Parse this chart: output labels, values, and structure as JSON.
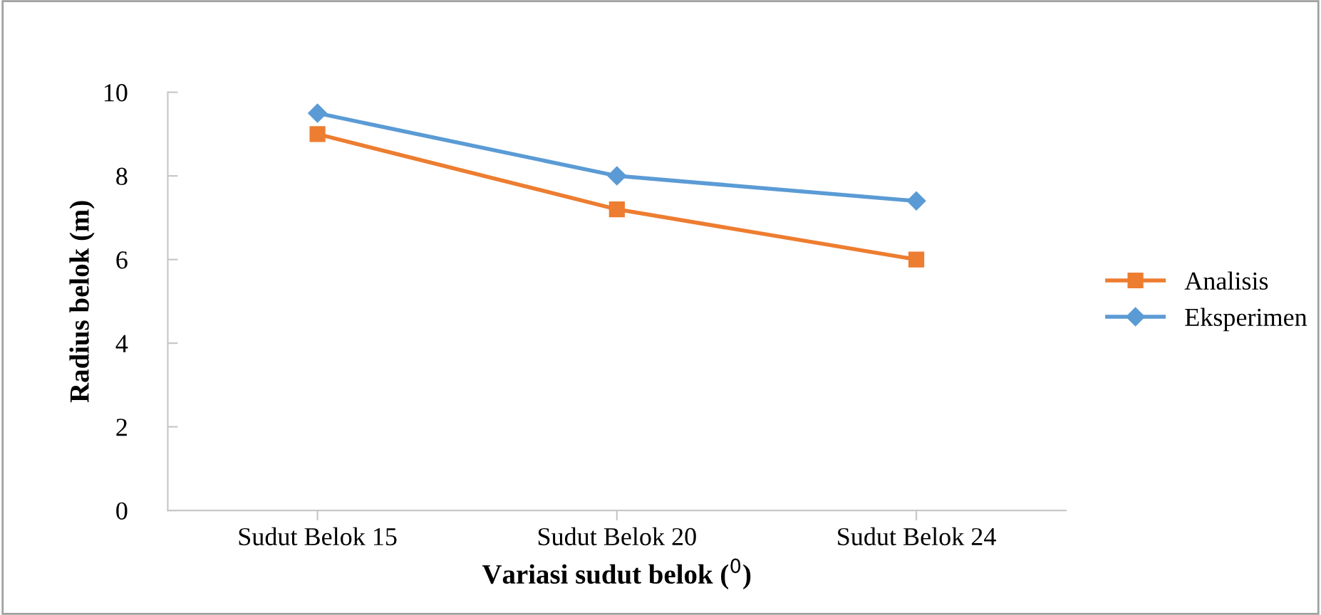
{
  "chart_data": {
    "type": "line",
    "xlabel": "Variasi sudut belok ($^{0}$)",
    "ylabel": "Radius belok (m)",
    "categories": [
      "Sudut Belok 15",
      "Sudut Belok 20",
      "Sudut Belok 24"
    ],
    "series": [
      {
        "name": "Analisis",
        "color": "#ed7d31",
        "marker": "square",
        "values": [
          9.0,
          7.2,
          6.0
        ]
      },
      {
        "name": "Eksperimen",
        "color": "#5b9bd5",
        "marker": "diamond",
        "values": [
          9.5,
          8.0,
          7.4
        ]
      }
    ],
    "ylim": [
      0,
      10
    ],
    "yticks": [
      0,
      2,
      4,
      6,
      8,
      10
    ],
    "grid": false,
    "legend": "right",
    "line_style": "solid"
  }
}
